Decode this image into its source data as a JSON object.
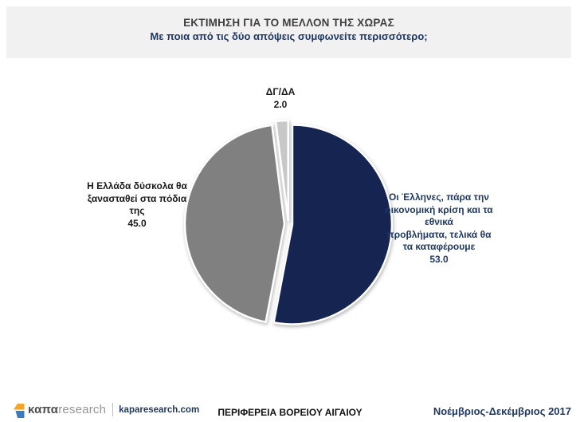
{
  "header": {
    "title": "ΕΚΤΙΜΗΣΗ ΓΙΑ ΤΟ ΜΕΛΛΟΝ ΤΗΣ ΧΩΡΑΣ",
    "subtitle": "Με ποια από τις δύο απόψεις συμφωνείτε περισσότερο;"
  },
  "chart_data": {
    "type": "pie",
    "title": "ΕΚΤΙΜΗΣΗ ΓΙΑ ΤΟ ΜΕΛΛΟΝ ΤΗΣ ΧΩΡΑΣ",
    "subtitle": "Με ποια από τις δύο απόψεις συμφωνείτε περισσότερο;",
    "start_angle_deg": 0,
    "direction": "clockwise",
    "legend_position": "none",
    "labels_position": "outside",
    "slices": [
      {
        "label": "Οι Έλληνες, πάρα την οικονομική κρίση και τα εθνικά προβλήματα, τελικά θα τα καταφέρουμε",
        "value": 53.0,
        "color": "#152451"
      },
      {
        "label": "Η Ελλάδα δύσκολα θα ξανασταθεί στα πόδια της",
        "value": 45.0,
        "color": "#808080"
      },
      {
        "label": "ΔΓ/ΔΑ",
        "value": 2.0,
        "color": "#c8c8c8"
      }
    ]
  },
  "callouts": {
    "top": {
      "lines": [
        "ΔΓ/ΔΑ",
        "2.0"
      ]
    },
    "left": {
      "lines": [
        "Η Ελλάδα δύσκολα θα",
        "ξανασταθεί στα πόδια",
        "της",
        "45.0"
      ]
    },
    "right": {
      "lines": [
        "Οι Έλληνες, πάρα την",
        "οικονομική κρίση και τα",
        "εθνικά",
        "προβλήματα, τελικά θα",
        "τα καταφέρουμε",
        "53.0"
      ]
    }
  },
  "footer": {
    "brand_bold": "καπα",
    "brand_light": "research",
    "domain": "kaparesearch.com",
    "region": "ΠΕΡΙΦΕΡΕΙΑ ΒΟΡΕΙΟΥ ΑΙΓΑΙΟΥ",
    "period": "Νοέμβριος-Δεκέμβριος 2017"
  },
  "colors": {
    "accent_navy": "#1f3864",
    "header_bg": "#f1f1f2",
    "logo_orange": "#f4a427",
    "logo_blue": "#3c7cbb"
  }
}
